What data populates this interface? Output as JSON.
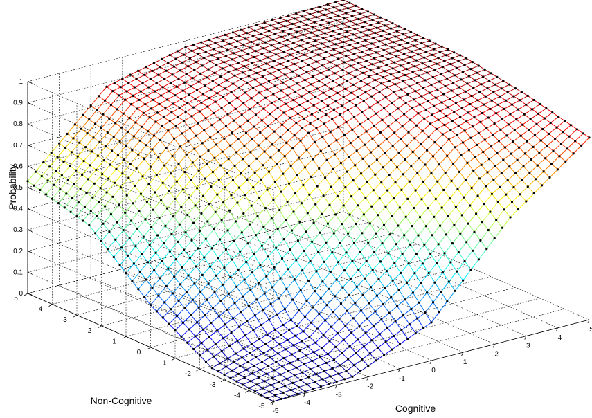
{
  "chart_data": {
    "type": "surface",
    "zlabel": "Probability",
    "xlabel": "Cognitive",
    "ylabel": "Non-Cognitive",
    "x_range": [
      -5,
      5
    ],
    "y_range": [
      -5,
      5
    ],
    "z_range": [
      0,
      1
    ],
    "x_ticks": [
      "-5",
      "-4",
      "-3",
      "-2",
      "-1",
      "0",
      "1",
      "2",
      "3",
      "4",
      "5"
    ],
    "y_ticks": [
      "-5",
      "-4",
      "-3",
      "-2",
      "-1",
      "0",
      "1",
      "2",
      "3",
      "4",
      "5"
    ],
    "z_ticks": [
      "0",
      "0.1",
      "0.2",
      "0.3",
      "0.4",
      "0.5",
      "0.6",
      "0.7",
      "0.8",
      "0.9",
      "1"
    ],
    "grid": true,
    "colormap": "jet",
    "marker": "dot",
    "grid_points_per_axis": 41,
    "surface_samples": {
      "x_values": [
        -5,
        -2.5,
        0,
        2.5,
        5
      ],
      "y_values": [
        -5,
        -2.5,
        0,
        2.5,
        5
      ],
      "z": [
        [
          0.0,
          0.02,
          0.18,
          0.58,
          0.86
        ],
        [
          0.03,
          0.16,
          0.52,
          0.82,
          0.93
        ],
        [
          0.2,
          0.55,
          0.82,
          0.94,
          0.98
        ],
        [
          0.45,
          0.8,
          0.93,
          0.98,
          0.99
        ],
        [
          0.53,
          0.88,
          0.97,
          0.99,
          1.0
        ]
      ]
    }
  }
}
